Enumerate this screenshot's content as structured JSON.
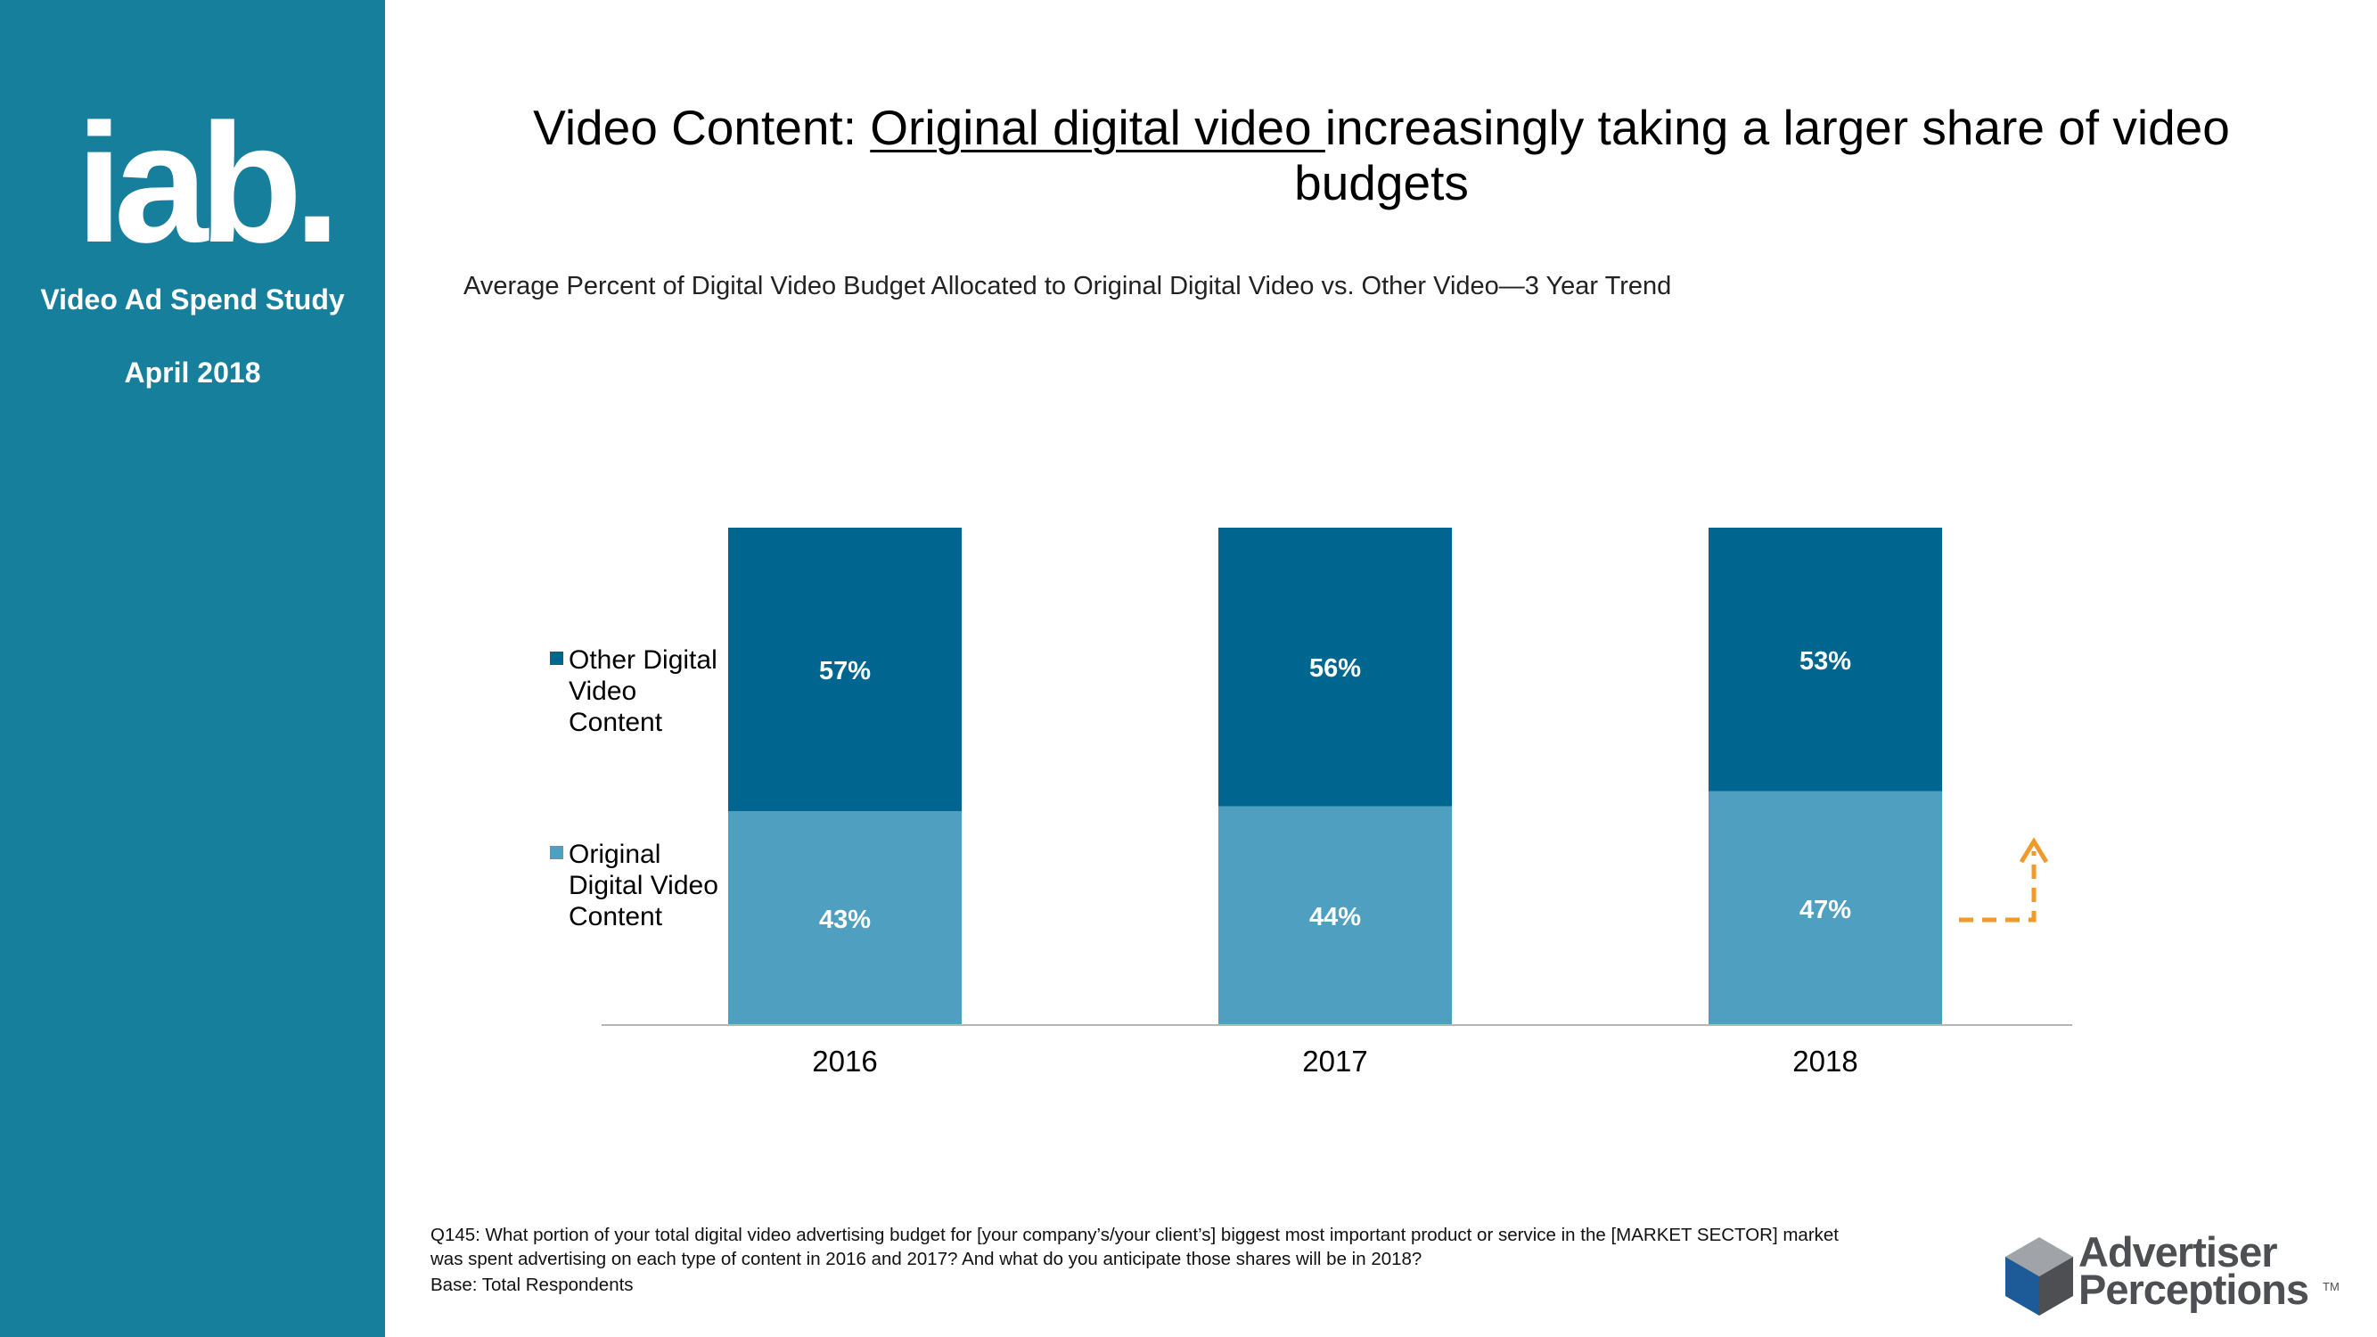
{
  "sidebar": {
    "logo_text": "iab.",
    "study_label": "Video Ad Spend Study",
    "date_label": "April 2018"
  },
  "title": {
    "prefix": "Video Content:  ",
    "underlined": "Original digital video ",
    "suffix": "increasingly taking a larger share of video budgets"
  },
  "chart_data": {
    "type": "bar",
    "stacked": true,
    "title": "Average Percent of Digital Video Budget Allocated to Original Digital Video vs. Other Video—3 Year Trend",
    "categories": [
      "2016",
      "2017",
      "2018"
    ],
    "series": [
      {
        "name": "Original Digital Video Content",
        "values": [
          43,
          44,
          47
        ],
        "labels": [
          "43%",
          "44%",
          "47%"
        ],
        "color": "#4f9fc0"
      },
      {
        "name": "Other Digital Video Content",
        "values": [
          57,
          56,
          53
        ],
        "labels": [
          "57%",
          "56%",
          "53%"
        ],
        "color": "#00668f"
      }
    ],
    "legend": [
      {
        "name": "Other Digital Video Content",
        "lines": [
          "Other Digital",
          "Video",
          "Content"
        ],
        "color": "#00668f"
      },
      {
        "name": "Original Digital Video Content",
        "lines": [
          "Original",
          "Digital Video",
          "Content"
        ],
        "color": "#4f9fc0"
      }
    ],
    "legend_position": "left",
    "ylim": [
      0,
      100
    ],
    "xlabel": "",
    "ylabel": "",
    "annotation": {
      "type": "dashed-arrow-up",
      "color": "#f09a2a",
      "target_category": "2018"
    }
  },
  "footnote": {
    "question": "Q145:  What portion of your total digital video advertising budget for [your company’s/your client’s] biggest most important product or service in the [MARKET SECTOR] market was spent advertising on each type of content in 2016 and 2017? And what do you anticipate those shares will be in 2018?",
    "base": "Base: Total Respondents"
  },
  "brand": {
    "name_line1": "Advertiser",
    "name_line2": "Perceptions",
    "trademark": "TM",
    "colors": {
      "sidebar": "#167f9c",
      "dark": "#00668f",
      "light": "#4f9fc0",
      "accent": "#f09a2a"
    }
  }
}
